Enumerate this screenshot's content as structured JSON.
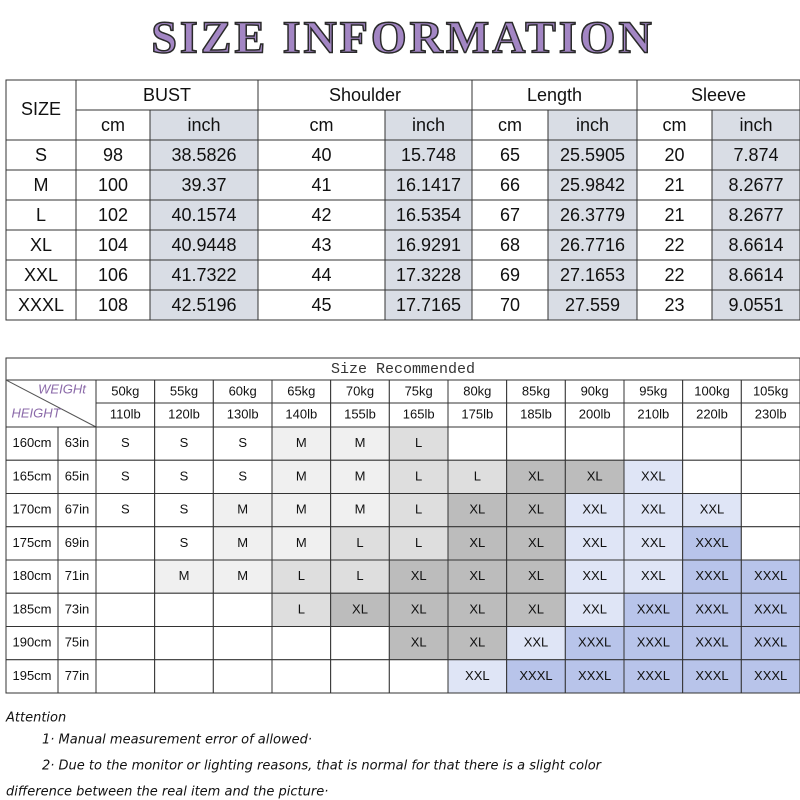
{
  "title": "SIZE INFORMATION",
  "table1": {
    "size_header": "SIZE",
    "groups": [
      {
        "name": "BUST",
        "units": [
          "cm",
          "inch"
        ]
      },
      {
        "name": "Shoulder",
        "units": [
          "cm",
          "inch"
        ]
      },
      {
        "name": "Length",
        "units": [
          "cm",
          "inch"
        ]
      },
      {
        "name": "Sleeve",
        "units": [
          "cm",
          "inch"
        ]
      }
    ],
    "rows": [
      {
        "size": "S",
        "values": [
          98,
          38.5826,
          40,
          15.748,
          65,
          25.5905,
          20,
          7.874
        ]
      },
      {
        "size": "M",
        "values": [
          100,
          39.37,
          41,
          16.1417,
          66,
          25.9842,
          21,
          8.2677
        ]
      },
      {
        "size": "L",
        "values": [
          102,
          40.1574,
          42,
          16.5354,
          67,
          26.3779,
          21,
          8.2677
        ]
      },
      {
        "size": "XL",
        "values": [
          104,
          40.9448,
          43,
          16.9291,
          68,
          26.7716,
          22,
          8.6614
        ]
      },
      {
        "size": "XXL",
        "values": [
          106,
          41.7322,
          44,
          17.3228,
          69,
          27.1653,
          22,
          8.6614
        ]
      },
      {
        "size": "XXXL",
        "values": [
          108,
          42.5196,
          45,
          17.7165,
          70,
          27.559,
          23,
          9.0551
        ]
      }
    ]
  },
  "table2": {
    "title": "Size Recommended",
    "weight_label": "WEIGHt",
    "height_label": "HEIGHT",
    "weights_kg": [
      "50kg",
      "55kg",
      "60kg",
      "65kg",
      "70kg",
      "75kg",
      "80kg",
      "85kg",
      "90kg",
      "95kg",
      "100kg",
      "105kg"
    ],
    "weights_lb": [
      "110lb",
      "120lb",
      "130lb",
      "140lb",
      "155lb",
      "165lb",
      "175lb",
      "185lb",
      "200lb",
      "210lb",
      "220lb",
      "230lb"
    ],
    "rows": [
      {
        "cm": "160cm",
        "in": "63in",
        "sizes": [
          "S",
          "S",
          "S",
          "M",
          "M",
          "L",
          null,
          null,
          null,
          null,
          null,
          null
        ]
      },
      {
        "cm": "165cm",
        "in": "65in",
        "sizes": [
          "S",
          "S",
          "S",
          "M",
          "M",
          "L",
          "L",
          "XL",
          "XL",
          "XXL",
          null,
          null
        ]
      },
      {
        "cm": "170cm",
        "in": "67in",
        "sizes": [
          "S",
          "S",
          "M",
          "M",
          "M",
          "L",
          "XL",
          "XL",
          "XXL",
          "XXL",
          "XXL",
          null
        ]
      },
      {
        "cm": "175cm",
        "in": "69in",
        "sizes": [
          null,
          "S",
          "M",
          "M",
          "L",
          "L",
          "XL",
          "XL",
          "XXL",
          "XXL",
          "XXXL",
          null
        ]
      },
      {
        "cm": "180cm",
        "in": "71in",
        "sizes": [
          null,
          "M",
          "M",
          "L",
          "L",
          "XL",
          "XL",
          "XL",
          "XXL",
          "XXL",
          "XXXL",
          "XXXL"
        ]
      },
      {
        "cm": "185cm",
        "in": "73in",
        "sizes": [
          null,
          null,
          null,
          "L",
          "XL",
          "XL",
          "XL",
          "XL",
          "XXL",
          "XXXL",
          "XXXL",
          "XXXL"
        ]
      },
      {
        "cm": "190cm",
        "in": "75in",
        "sizes": [
          null,
          null,
          null,
          null,
          null,
          "XL",
          "XL",
          "XXL",
          "XXXL",
          "XXXL",
          "XXXL",
          "XXXL"
        ]
      },
      {
        "cm": "195cm",
        "in": "77in",
        "sizes": [
          null,
          null,
          null,
          null,
          null,
          null,
          "XXL",
          "XXXL",
          "XXXL",
          "XXXL",
          "XXXL",
          "XXXL"
        ]
      }
    ]
  },
  "notes": {
    "heading": "Attention",
    "lines": [
      "1· Manual measurement error of allowed·",
      "2·  Due to the monitor or lighting reasons, that is normal for that there is a slight color",
      "difference between the real item and the picture·"
    ]
  }
}
